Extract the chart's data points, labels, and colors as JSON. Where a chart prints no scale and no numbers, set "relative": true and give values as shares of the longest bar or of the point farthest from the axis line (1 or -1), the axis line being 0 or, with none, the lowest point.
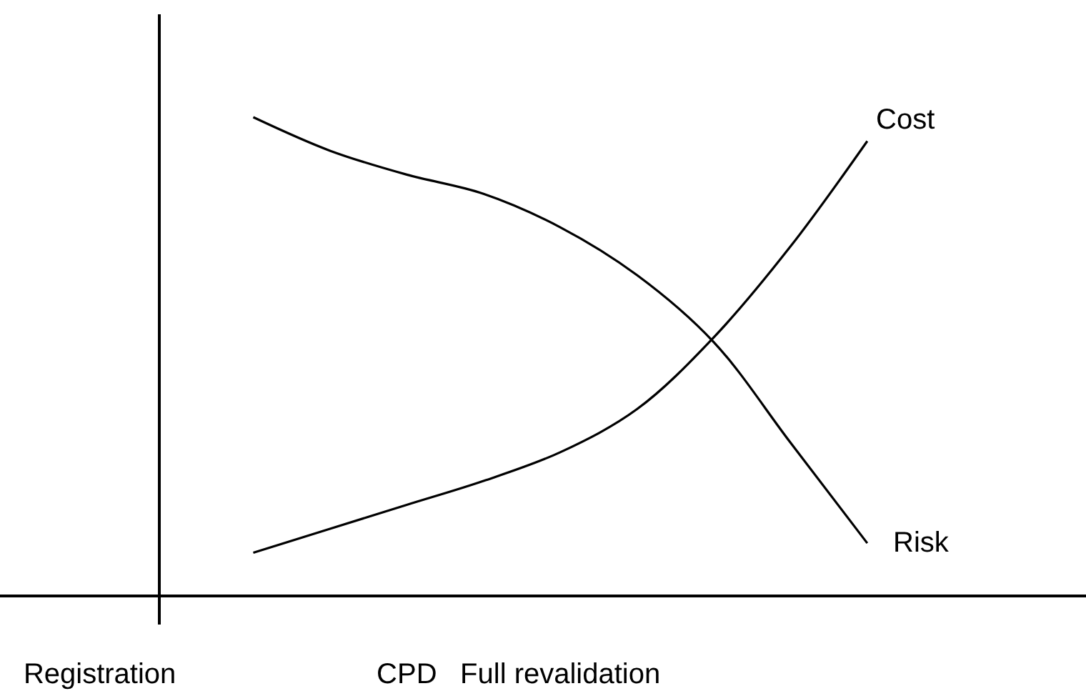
{
  "chart_data": {
    "type": "line",
    "relative": true,
    "categories": [
      "Registration",
      null,
      null,
      null,
      "CPD",
      null,
      "Full revalidation",
      null,
      null,
      null,
      null,
      null,
      null
    ],
    "series": [
      {
        "name": "Cost",
        "color": "#000000",
        "values": [
          null,
          null,
          0.09,
          0.14,
          0.19,
          0.24,
          0.3,
          0.39,
          0.54,
          0.73,
          0.95,
          null,
          null
        ]
      },
      {
        "name": "Risk",
        "color": "#000000",
        "values": [
          null,
          null,
          1,
          0.93,
          0.88,
          0.84,
          0.77,
          0.67,
          0.53,
          0.32,
          0.11,
          null,
          null
        ]
      }
    ],
    "legend": false,
    "grid": false
  }
}
